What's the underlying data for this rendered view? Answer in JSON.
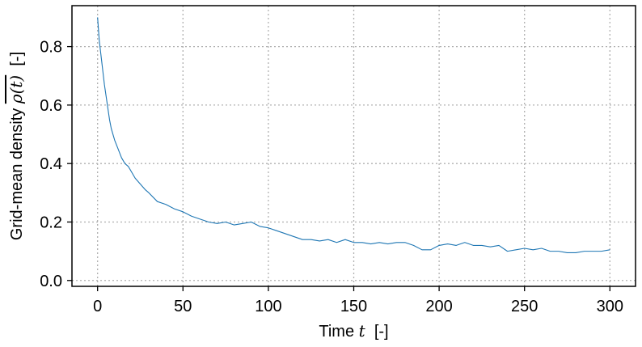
{
  "chart_data": {
    "type": "line",
    "xlabel": {
      "prefix": "Time ",
      "math": "t",
      "suffix": "  [-]"
    },
    "ylabel": {
      "prefix": "Grid-mean density ",
      "math": "ρ(t)",
      "suffix": "  [-]"
    },
    "xlim": [
      -15,
      315
    ],
    "ylim": [
      -0.02,
      0.94
    ],
    "xticks": [
      0,
      50,
      100,
      150,
      200,
      250,
      300
    ],
    "xtick_labels": [
      "0",
      "50",
      "100",
      "150",
      "200",
      "250",
      "300"
    ],
    "yticks": [
      0.0,
      0.2,
      0.4,
      0.6,
      0.8
    ],
    "ytick_labels": [
      "0.0",
      "0.2",
      "0.4",
      "0.6",
      "0.8"
    ],
    "grid": true,
    "legend": "none",
    "colors": {
      "line": "#1f77b4",
      "grid": "#b0b0b0",
      "axes": "#000000"
    },
    "series": [
      {
        "x": [
          0,
          1,
          2,
          3,
          4,
          5,
          6,
          7,
          8,
          9,
          10,
          12,
          14,
          16,
          18,
          20,
          22,
          25,
          28,
          30,
          35,
          40,
          45,
          50,
          55,
          60,
          65,
          70,
          75,
          80,
          85,
          90,
          95,
          100,
          105,
          110,
          115,
          120,
          125,
          130,
          135,
          140,
          145,
          150,
          155,
          160,
          165,
          170,
          175,
          180,
          185,
          190,
          195,
          200,
          205,
          210,
          215,
          220,
          225,
          230,
          235,
          240,
          245,
          250,
          255,
          260,
          265,
          270,
          275,
          280,
          285,
          290,
          295,
          300
        ],
        "y": [
          0.9,
          0.82,
          0.77,
          0.72,
          0.67,
          0.63,
          0.59,
          0.55,
          0.52,
          0.5,
          0.48,
          0.45,
          0.42,
          0.4,
          0.39,
          0.37,
          0.35,
          0.33,
          0.31,
          0.3,
          0.27,
          0.26,
          0.245,
          0.235,
          0.22,
          0.21,
          0.2,
          0.195,
          0.2,
          0.19,
          0.195,
          0.2,
          0.185,
          0.18,
          0.17,
          0.16,
          0.15,
          0.14,
          0.14,
          0.135,
          0.14,
          0.13,
          0.14,
          0.13,
          0.13,
          0.125,
          0.13,
          0.125,
          0.13,
          0.13,
          0.12,
          0.105,
          0.105,
          0.12,
          0.125,
          0.12,
          0.13,
          0.12,
          0.12,
          0.115,
          0.12,
          0.1,
          0.105,
          0.11,
          0.105,
          0.11,
          0.1,
          0.1,
          0.095,
          0.095,
          0.1,
          0.1,
          0.1,
          0.105
        ]
      }
    ]
  }
}
